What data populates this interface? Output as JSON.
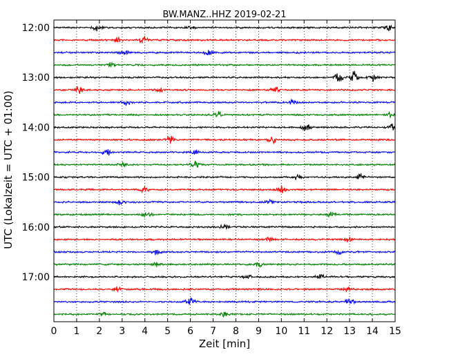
{
  "chart_data": {
    "type": "line",
    "title": "BW.MANZ..HHZ 2019-02-21",
    "xlabel": "Zeit  [min]",
    "ylabel": "UTC (Lokalzeit = UTC + 01:00)",
    "xlim": [
      0,
      15
    ],
    "x_ticks": [
      "0",
      "1",
      "2",
      "3",
      "4",
      "5",
      "6",
      "7",
      "8",
      "9",
      "10",
      "11",
      "12",
      "13",
      "14",
      "15"
    ],
    "y_tick_labels": [
      "12:00",
      "13:00",
      "14:00",
      "15:00",
      "16:00",
      "17:00"
    ],
    "grid": "vertical dotted",
    "colors": [
      "#000000",
      "#ff0000",
      "#0000ff",
      "#008000"
    ],
    "series": [
      {
        "start": "12:00",
        "color": "#000000",
        "events": [
          {
            "x": 1.9,
            "amp": 0.55
          },
          {
            "x": 14.7,
            "amp": 0.45
          },
          {
            "x": 6.0,
            "amp": 0.3
          }
        ]
      },
      {
        "start": "12:15",
        "color": "#ff0000",
        "events": [
          {
            "x": 2.8,
            "amp": 0.5
          },
          {
            "x": 3.9,
            "amp": 0.5
          }
        ]
      },
      {
        "start": "12:30",
        "color": "#0000ff",
        "events": [
          {
            "x": 6.8,
            "amp": 0.4
          },
          {
            "x": 3.1,
            "amp": 0.3
          }
        ]
      },
      {
        "start": "12:45",
        "color": "#008000",
        "events": [
          {
            "x": 2.5,
            "amp": 0.3
          }
        ]
      },
      {
        "start": "13:00",
        "color": "#000000",
        "events": [
          {
            "x": 12.5,
            "amp": 0.6
          },
          {
            "x": 13.2,
            "amp": 0.75
          },
          {
            "x": 14.0,
            "amp": 0.55
          }
        ]
      },
      {
        "start": "13:15",
        "color": "#ff0000",
        "events": [
          {
            "x": 1.1,
            "amp": 0.4
          },
          {
            "x": 4.6,
            "amp": 0.45
          },
          {
            "x": 9.7,
            "amp": 0.4
          }
        ]
      },
      {
        "start": "13:30",
        "color": "#0000ff",
        "events": [
          {
            "x": 3.2,
            "amp": 0.45
          },
          {
            "x": 10.5,
            "amp": 0.35
          }
        ]
      },
      {
        "start": "13:45",
        "color": "#008000",
        "events": [
          {
            "x": 7.2,
            "amp": 0.5
          },
          {
            "x": 14.8,
            "amp": 0.35
          }
        ]
      },
      {
        "start": "14:00",
        "color": "#000000",
        "events": [
          {
            "x": 11.1,
            "amp": 0.5
          },
          {
            "x": 14.9,
            "amp": 0.6
          }
        ]
      },
      {
        "start": "14:15",
        "color": "#ff0000",
        "events": [
          {
            "x": 5.1,
            "amp": 0.5
          },
          {
            "x": 9.6,
            "amp": 0.55
          }
        ]
      },
      {
        "start": "14:30",
        "color": "#0000ff",
        "events": [
          {
            "x": 2.3,
            "amp": 0.5
          },
          {
            "x": 6.2,
            "amp": 0.35
          }
        ]
      },
      {
        "start": "14:45",
        "color": "#008000",
        "events": [
          {
            "x": 6.2,
            "amp": 0.5
          },
          {
            "x": 3.0,
            "amp": 0.35
          }
        ]
      },
      {
        "start": "15:00",
        "color": "#000000",
        "events": [
          {
            "x": 10.7,
            "amp": 0.5
          },
          {
            "x": 13.5,
            "amp": 0.4
          }
        ]
      },
      {
        "start": "15:15",
        "color": "#ff0000",
        "events": [
          {
            "x": 10.0,
            "amp": 0.55
          },
          {
            "x": 4.0,
            "amp": 0.35
          }
        ]
      },
      {
        "start": "15:30",
        "color": "#0000ff",
        "events": [
          {
            "x": 2.9,
            "amp": 0.35
          },
          {
            "x": 9.5,
            "amp": 0.3
          }
        ]
      },
      {
        "start": "15:45",
        "color": "#008000",
        "events": [
          {
            "x": 4.1,
            "amp": 0.4
          },
          {
            "x": 12.2,
            "amp": 0.35
          }
        ]
      },
      {
        "start": "16:00",
        "color": "#000000",
        "events": [
          {
            "x": 7.5,
            "amp": 0.3
          }
        ]
      },
      {
        "start": "16:15",
        "color": "#ff0000",
        "events": [
          {
            "x": 9.5,
            "amp": 0.35
          },
          {
            "x": 12.9,
            "amp": 0.3
          }
        ]
      },
      {
        "start": "16:30",
        "color": "#0000ff",
        "events": [
          {
            "x": 4.5,
            "amp": 0.35
          },
          {
            "x": 12.5,
            "amp": 0.35
          }
        ]
      },
      {
        "start": "16:45",
        "color": "#008000",
        "events": [
          {
            "x": 9.0,
            "amp": 0.35
          },
          {
            "x": 4.5,
            "amp": 0.3
          }
        ]
      },
      {
        "start": "17:00",
        "color": "#000000",
        "events": [
          {
            "x": 11.7,
            "amp": 0.35
          },
          {
            "x": 8.5,
            "amp": 0.25
          }
        ]
      },
      {
        "start": "17:15",
        "color": "#ff0000",
        "events": [
          {
            "x": 2.8,
            "amp": 0.35
          },
          {
            "x": 12.9,
            "amp": 0.35
          }
        ]
      },
      {
        "start": "17:30",
        "color": "#0000ff",
        "events": [
          {
            "x": 6.0,
            "amp": 0.5
          },
          {
            "x": 13.0,
            "amp": 0.45
          }
        ]
      },
      {
        "start": "17:45",
        "color": "#008000",
        "events": [
          {
            "x": 7.5,
            "amp": 0.3
          },
          {
            "x": 2.2,
            "amp": 0.25
          }
        ]
      }
    ]
  }
}
